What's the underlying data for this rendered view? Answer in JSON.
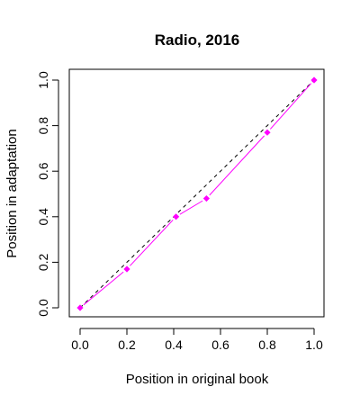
{
  "chart_data": {
    "type": "line",
    "title": "Radio, 2016",
    "xlabel": "Position in original book",
    "ylabel": "Position in adaptation",
    "xlim": [
      0,
      1
    ],
    "ylim": [
      0,
      1
    ],
    "x_ticks": [
      "0.0",
      "0.2",
      "0.4",
      "0.6",
      "0.8",
      "1.0"
    ],
    "y_ticks": [
      "0.0",
      "0.2",
      "0.4",
      "0.6",
      "0.8",
      "1.0"
    ],
    "grid": false,
    "legend": "none",
    "series": [
      {
        "style": "solid-with-markers",
        "color": "#ff00ff",
        "marker": "diamond",
        "x": [
          0.0,
          0.2,
          0.41,
          0.54,
          0.8,
          1.0
        ],
        "y": [
          0.0,
          0.17,
          0.4,
          0.48,
          0.77,
          1.0
        ]
      }
    ],
    "reference_line": {
      "style": "dashed",
      "color": "#000000",
      "x": [
        0,
        1
      ],
      "y": [
        0,
        1
      ]
    }
  }
}
